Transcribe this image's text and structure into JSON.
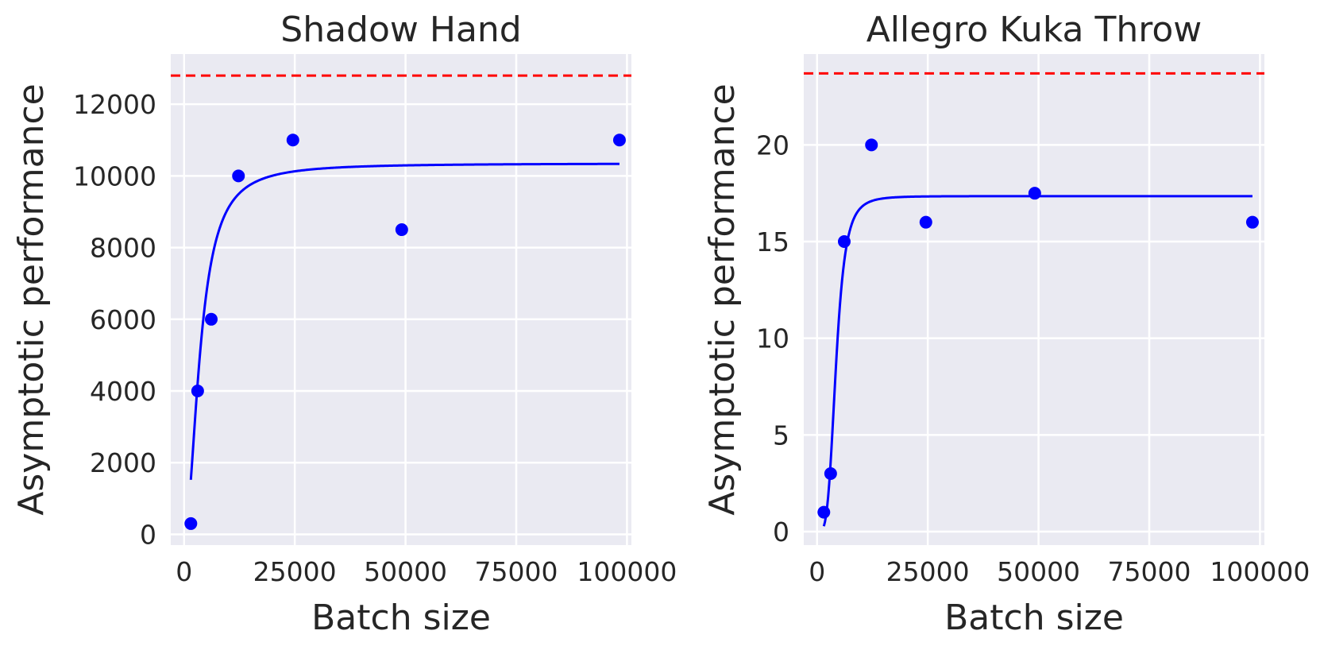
{
  "chart_data": [
    {
      "type": "scatter",
      "title": "Shadow Hand",
      "xlabel": "Batch size",
      "ylabel": "Asymptotic performance",
      "xlim": [
        -3000,
        101000
      ],
      "ylim": [
        -300,
        13400
      ],
      "xticks": [
        0,
        25000,
        50000,
        75000,
        100000
      ],
      "yticks": [
        0,
        2000,
        4000,
        6000,
        8000,
        10000,
        12000
      ],
      "grid": true,
      "reference_line": 12800,
      "points": [
        {
          "x": 1536,
          "y": 300
        },
        {
          "x": 3072,
          "y": 4000
        },
        {
          "x": 6144,
          "y": 6000
        },
        {
          "x": 12288,
          "y": 10000
        },
        {
          "x": 24576,
          "y": 11000
        },
        {
          "x": 49152,
          "y": 8500
        },
        {
          "x": 98304,
          "y": 11000
        }
      ],
      "fit_curve": {
        "ymax": 10350,
        "k": 3700,
        "n": 2.0,
        "x_start": 1536,
        "x_end": 98304
      }
    },
    {
      "type": "scatter",
      "title": "Allegro Kuka Throw",
      "xlabel": "Batch size",
      "ylabel": "Asymptotic performance",
      "xlim": [
        -3000,
        101000
      ],
      "ylim": [
        -0.7,
        24.7
      ],
      "xticks": [
        0,
        25000,
        50000,
        75000,
        100000
      ],
      "yticks": [
        0,
        5,
        10,
        15,
        20
      ],
      "grid": true,
      "reference_line": 23.7,
      "points": [
        {
          "x": 1536,
          "y": 1
        },
        {
          "x": 3072,
          "y": 3
        },
        {
          "x": 6144,
          "y": 15
        },
        {
          "x": 12288,
          "y": 20
        },
        {
          "x": 24576,
          "y": 16
        },
        {
          "x": 49152,
          "y": 17.5
        },
        {
          "x": 98304,
          "y": 16
        }
      ],
      "fit_curve": {
        "ymax": 17.35,
        "k": 4300,
        "n": 4.0,
        "x_start": 1536,
        "x_end": 98304
      }
    }
  ],
  "colors": {
    "background": "#eaeaf2",
    "grid": "#ffffff",
    "points": "#0000ff",
    "curve": "#0000ff",
    "reference": "#ff0000",
    "text": "#262626"
  }
}
